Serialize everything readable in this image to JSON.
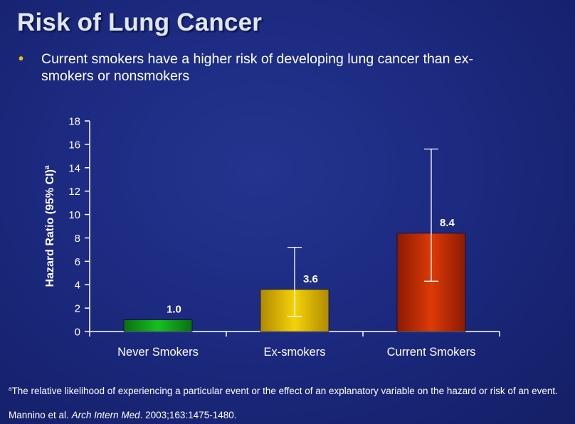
{
  "slide": {
    "title": "Risk of Lung Cancer",
    "bullet_line1": "Current smokers have a higher risk of developing lung cancer than ex-",
    "bullet_line2": "smokers or nonsmokers",
    "footnote_marker": "a",
    "footnote_text": "The relative likelihood of experiencing a particular event or the effect of an explanatory variable on the hazard or risk of an event.",
    "citation_authors": "Mannino et al. ",
    "citation_journal": "Arch Intern Med",
    "citation_details": ". 2003;163:1475-1480."
  },
  "chart_data": {
    "type": "bar",
    "title": "",
    "ylabel": "Hazard Ratio (95% CI)",
    "ylabel_superscript": "a",
    "ylim": [
      0,
      18
    ],
    "yticks": [
      0,
      2,
      4,
      6,
      8,
      10,
      12,
      14,
      16,
      18
    ],
    "categories": [
      "Never Smokers",
      "Ex-smokers",
      "Current Smokers"
    ],
    "values": [
      1.0,
      3.6,
      8.4
    ],
    "value_labels": [
      "1.0",
      "3.6",
      "8.4"
    ],
    "ci_low": [
      null,
      1.3,
      4.3
    ],
    "ci_high": [
      null,
      7.2,
      15.6
    ],
    "bar_colors": [
      "#0c9a16",
      "#e3b803",
      "#c22a04"
    ],
    "grid": false,
    "legend": "none"
  }
}
